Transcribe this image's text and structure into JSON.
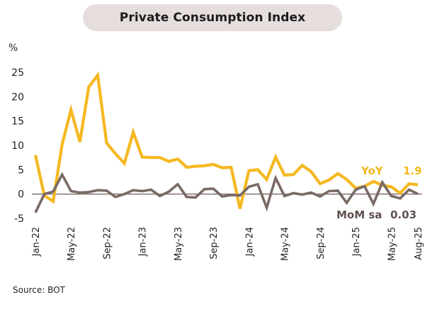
{
  "chart_data": {
    "type": "line",
    "title": "Private Consumption Index",
    "ylabel": "%",
    "xlabel": "",
    "ylim": [
      -5,
      25
    ],
    "yticks": [
      25,
      20,
      15,
      10,
      5,
      0,
      -5
    ],
    "grid": false,
    "zero_line": true,
    "x": [
      "Jan-22",
      "Feb-22",
      "Mar-22",
      "Apr-22",
      "May-22",
      "Jun-22",
      "Jul-22",
      "Aug-22",
      "Sep-22",
      "Oct-22",
      "Nov-22",
      "Dec-22",
      "Jan-23",
      "Feb-23",
      "Mar-23",
      "Apr-23",
      "May-23",
      "Jun-23",
      "Jul-23",
      "Aug-23",
      "Sep-23",
      "Oct-23",
      "Nov-23",
      "Dec-23",
      "Jan-24",
      "Feb-24",
      "Mar-24",
      "Apr-24",
      "May-24",
      "Jun-24",
      "Jul-24",
      "Aug-24",
      "Sep-24",
      "Oct-24",
      "Nov-24",
      "Dec-24",
      "Jan-25",
      "Feb-25",
      "Mar-25",
      "Apr-25",
      "May-25",
      "Jun-25",
      "Jul-25",
      "Aug-25"
    ],
    "xtick_labels": [
      "Jan-22",
      "May-22",
      "Sep-22",
      "Jan-23",
      "May-23",
      "Sep-23",
      "Jan-24",
      "May-24",
      "Sep-24",
      "Jan-25",
      "May-25",
      "Aug-25"
    ],
    "series": [
      {
        "name": "YoY",
        "color": "#f5b820",
        "end_label": "1.9",
        "values": [
          8.0,
          -0.3,
          -1.5,
          10.2,
          17.3,
          10.7,
          22.0,
          24.4,
          10.5,
          8.3,
          6.3,
          12.7,
          7.6,
          7.5,
          7.5,
          6.7,
          7.2,
          5.5,
          5.7,
          5.8,
          6.1,
          5.4,
          5.5,
          -3.0,
          4.8,
          5.0,
          3.0,
          7.6,
          3.9,
          4.0,
          5.9,
          4.6,
          2.1,
          2.9,
          4.2,
          3.0,
          1.2,
          1.6,
          2.6,
          1.8,
          1.5,
          0.2,
          2.1,
          1.9
        ]
      },
      {
        "name": "MoM sa",
        "color": "#7a6a66",
        "end_label": "0.03",
        "values": [
          -3.8,
          0.0,
          0.5,
          4.0,
          0.6,
          0.3,
          0.4,
          0.8,
          0.7,
          -0.6,
          0.0,
          0.8,
          0.6,
          0.9,
          -0.4,
          0.5,
          2.0,
          -0.6,
          -0.7,
          1.0,
          1.1,
          -0.5,
          -0.2,
          -0.3,
          1.5,
          2.0,
          -2.8,
          3.3,
          -0.4,
          0.2,
          -0.1,
          0.3,
          -0.5,
          0.6,
          0.7,
          -1.8,
          0.9,
          1.6,
          -2.0,
          2.4,
          -0.4,
          -0.9,
          0.9,
          0.03
        ]
      }
    ],
    "legend": "inline-end-labels",
    "source": "Source: BOT"
  },
  "colors": {
    "title_pill": "#e6dddd",
    "zero_line": "#7a6a66",
    "text": "#222222"
  }
}
